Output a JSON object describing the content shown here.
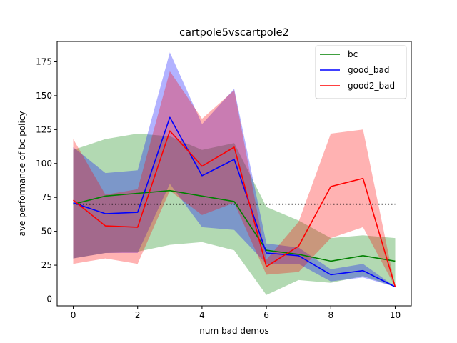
{
  "chart_data": {
    "type": "line",
    "title": "cartpole5vscartpole2",
    "xlabel": "num bad demos",
    "ylabel": "ave performance of bc policy",
    "xlim": [
      -0.5,
      10.5
    ],
    "ylim": [
      -5,
      190
    ],
    "xticks": [
      0,
      2,
      4,
      6,
      8,
      10
    ],
    "yticks": [
      0,
      25,
      50,
      75,
      100,
      125,
      150,
      175
    ],
    "legend_position": "top-right",
    "x": [
      0,
      1,
      2,
      3,
      4,
      5,
      6,
      7,
      8,
      9,
      10
    ],
    "series": [
      {
        "name": "bc",
        "color": "#008000",
        "values": [
          70,
          76,
          78,
          80,
          76,
          72,
          36,
          33,
          28,
          32,
          28
        ],
        "lower": [
          30,
          34,
          35,
          40,
          42,
          36,
          3,
          14,
          12,
          17,
          9
        ],
        "upper": [
          110,
          118,
          122,
          120,
          110,
          115,
          68,
          58,
          45,
          47,
          45
        ]
      },
      {
        "name": "good_bad",
        "color": "#0000ff",
        "values": [
          71,
          63,
          64,
          134,
          91,
          103,
          34,
          32,
          18,
          21,
          9
        ],
        "lower": [
          30,
          34,
          34,
          85,
          53,
          51,
          26,
          26,
          13,
          16,
          9
        ],
        "upper": [
          112,
          93,
          95,
          182,
          129,
          155,
          41,
          38,
          22,
          26,
          9
        ]
      },
      {
        "name": "good2_bad",
        "color": "#ff0000",
        "values": [
          73,
          54,
          53,
          124,
          98,
          112,
          24,
          39,
          83,
          89,
          9
        ],
        "lower": [
          26,
          30,
          26,
          80,
          62,
          71,
          18,
          20,
          45,
          53,
          9
        ],
        "upper": [
          118,
          77,
          81,
          168,
          133,
          154,
          29,
          57,
          122,
          125,
          9
        ]
      }
    ],
    "hline": {
      "y": 70,
      "style": "dotted",
      "color": "#000000",
      "x_from": 0,
      "x_to": 10
    }
  }
}
